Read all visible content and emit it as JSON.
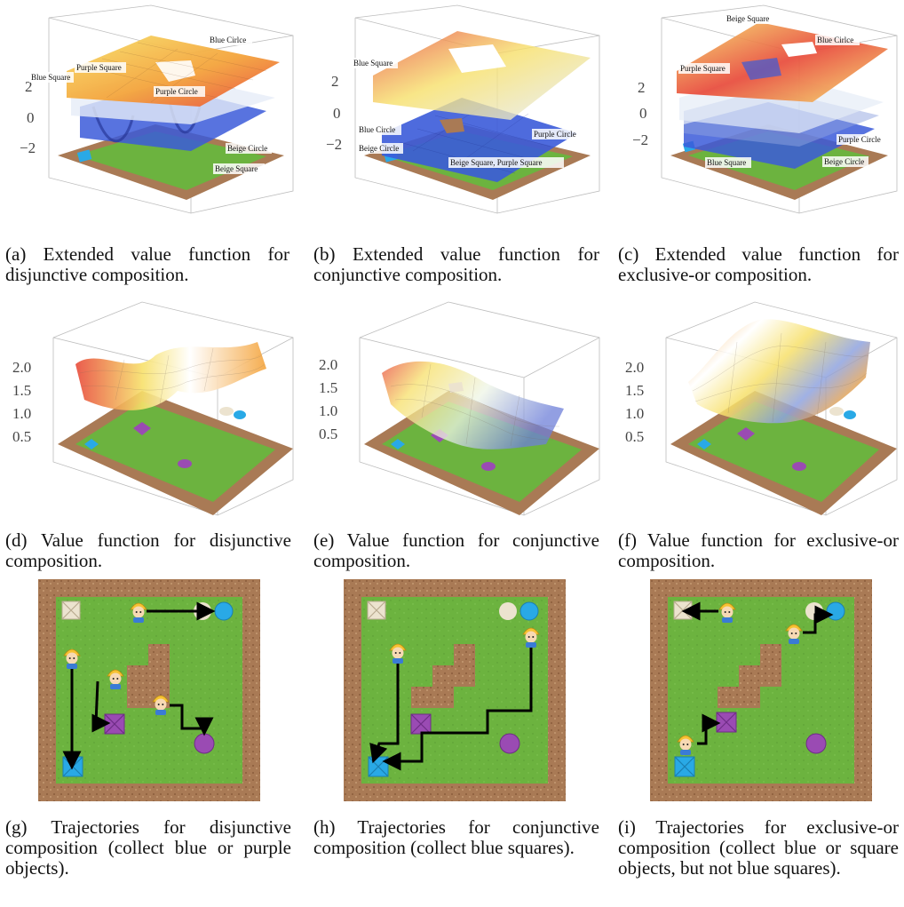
{
  "figure": {
    "rows": [
      {
        "kind": "extended-value-function",
        "panels": [
          {
            "id": "a",
            "caption": "(a) Extended value function for disjunctive composition.",
            "z_ticks": [
              "2",
              "0",
              "−2"
            ],
            "labels": [
              "Blue Square",
              "Purple Square",
              "Purple Circle",
              "Blue Cirlce",
              "Beige Circle",
              "Beige Square"
            ]
          },
          {
            "id": "b",
            "caption": "(b) Extended value function for conjunctive composition.",
            "z_ticks": [
              "2",
              "0",
              "−2"
            ],
            "labels": [
              "Blue Square",
              "Blue Circle",
              "Beige Circle",
              "Purple Circle",
              "Beige Square, Purple Square"
            ]
          },
          {
            "id": "c",
            "caption": "(c) Extended value function for exclusive-or composition.",
            "z_ticks": [
              "2",
              "0",
              "−2"
            ],
            "labels": [
              "Beige Square",
              "Blue Cirlce",
              "Purple Square",
              "Purple Circle",
              "Blue Square",
              "Beige Circle"
            ]
          }
        ]
      },
      {
        "kind": "value-function",
        "panels": [
          {
            "id": "d",
            "caption": "(d) Value function for disjunctive composition.",
            "z_ticks": [
              "2.0",
              "1.5",
              "1.0",
              "0.5"
            ]
          },
          {
            "id": "e",
            "caption": "(e) Value function for conjunctive composition.",
            "z_ticks": [
              "2.0",
              "1.5",
              "1.0",
              "0.5"
            ]
          },
          {
            "id": "f",
            "caption": "(f) Value function for exclusive-or composition.",
            "z_ticks": [
              "2.0",
              "1.5",
              "1.0",
              "0.5"
            ]
          }
        ]
      },
      {
        "kind": "trajectories",
        "panels": [
          {
            "id": "g",
            "caption": "(g) Trajectories for disjunctive composition (collect blue or purple objects)."
          },
          {
            "id": "h",
            "caption": "(h) Trajectories for conjunctive composition (collect blue squares)."
          },
          {
            "id": "i",
            "caption": "(i) Trajectories for exclusive-or composition (collect blue or square objects, but not blue squares)."
          }
        ]
      }
    ],
    "colors": {
      "dirt": "#a97a55",
      "grass": "#6cb33f",
      "blue_object": "#29a9e6",
      "purple_object": "#9a4bb3",
      "beige_object": "#ece3cf",
      "surface_high": "#e84a3a",
      "surface_mid": "#f7e06a",
      "surface_low": "#3b5bd9",
      "arrow": "#000000"
    }
  }
}
